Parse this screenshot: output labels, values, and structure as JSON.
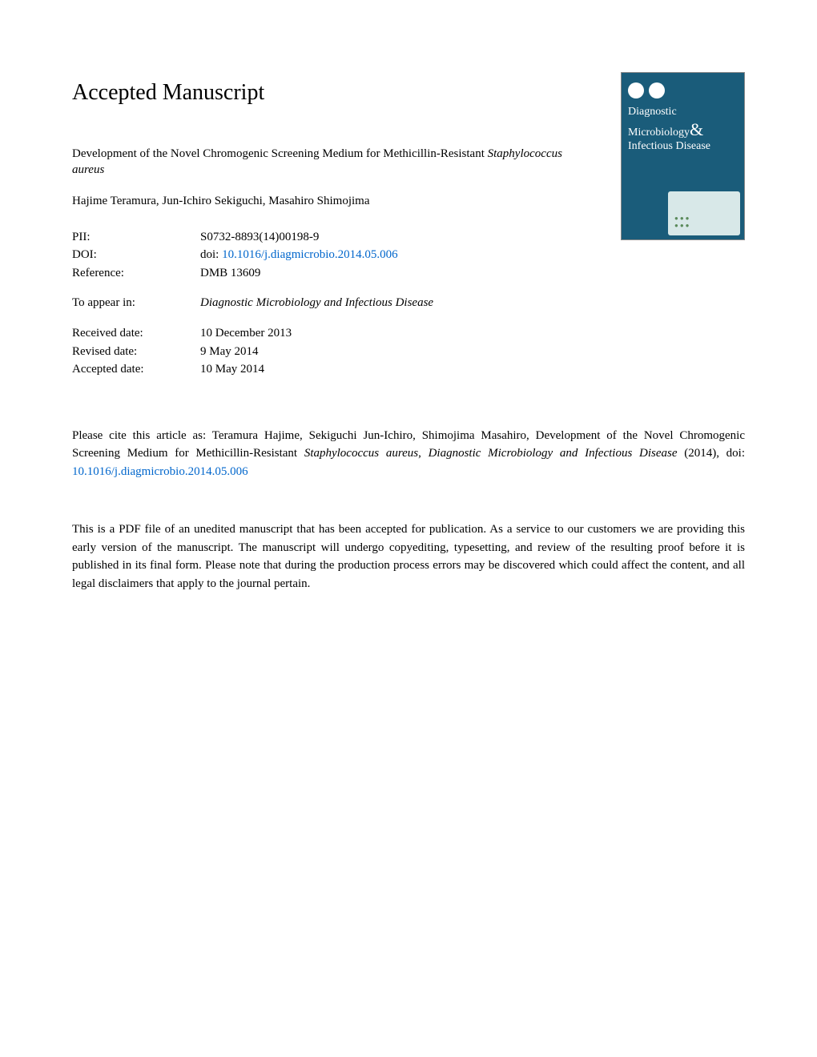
{
  "header": {
    "title": "Accepted Manuscript"
  },
  "journal_cover": {
    "title_line1": "Diagnostic",
    "title_line2": "Microbiology",
    "title_line3": "Infectious Disease",
    "background_color": "#1a5c7a",
    "text_color": "#ffffff"
  },
  "article": {
    "title_prefix": "Development of the Novel Chromogenic Screening Medium for Methicillin-Resistant ",
    "title_italic": "Staphylococcus aureus",
    "authors": "Hajime Teramura, Jun-Ichiro Sekiguchi, Masahiro Shimojima"
  },
  "metadata": {
    "pii_label": "PII:",
    "pii_value": "S0732-8893(14)00198-9",
    "doi_label": "DOI:",
    "doi_prefix": "doi: ",
    "doi_link": "10.1016/j.diagmicrobio.2014.05.006",
    "reference_label": "Reference:",
    "reference_value": "DMB 13609"
  },
  "appear_in": {
    "label": "To appear in:",
    "value": "Diagnostic Microbiology and Infectious Disease"
  },
  "dates": {
    "received_label": "Received date:",
    "received_value": "10 December 2013",
    "revised_label": "Revised date:",
    "revised_value": "9 May 2014",
    "accepted_label": "Accepted date:",
    "accepted_value": "10 May 2014"
  },
  "citation": {
    "text_part1": "Please cite this article as: Teramura Hajime, Sekiguchi Jun-Ichiro, Shimojima Masahiro, Development of the Novel Chromogenic Screening Medium for Methicillin-Resistant ",
    "text_italic1": "Staphylococcus aureus",
    "text_part2": ", ",
    "text_italic2": "Diagnostic Microbiology and Infectious Disease",
    "text_part3": " (2014), doi: ",
    "link": "10.1016/j.diagmicrobio.2014.05.006"
  },
  "disclaimer": {
    "text": "This is a PDF file of an unedited manuscript that has been accepted for publication. As a service to our customers we are providing this early version of the manuscript. The manuscript will undergo copyediting, typesetting, and review of the resulting proof before it is published in its final form. Please note that during the production process errors may be discovered which could affect the content, and all legal disclaimers that apply to the journal pertain."
  },
  "colors": {
    "link_color": "#0066cc",
    "text_color": "#000000",
    "background_color": "#ffffff"
  }
}
